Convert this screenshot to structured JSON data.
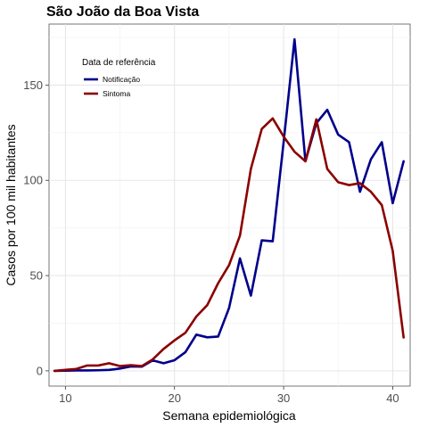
{
  "chart_data": {
    "type": "line",
    "title": "São João da Boa Vista",
    "xlabel": "Semana epidemiológica",
    "ylabel": "Casos por 100 mil habitantes",
    "xlim": [
      8.5,
      41.6
    ],
    "ylim": [
      -8,
      182
    ],
    "x_ticks": [
      10,
      20,
      30,
      40
    ],
    "y_ticks": [
      0,
      50,
      100,
      150
    ],
    "grid": true,
    "legend": {
      "title": "Data de referência",
      "placement": "top-left-inside"
    },
    "x": [
      9,
      10,
      11,
      12,
      13,
      14,
      15,
      16,
      17,
      18,
      19,
      20,
      21,
      22,
      23,
      24,
      25,
      26,
      27,
      28,
      29,
      30,
      31,
      32,
      33,
      34,
      35,
      36,
      37,
      38,
      39,
      40,
      41
    ],
    "series": [
      {
        "name": "Notificação",
        "color": "#00008b",
        "values": [
          0,
          0.1,
          0.2,
          0.2,
          0.3,
          0.5,
          1.2,
          2.3,
          2.2,
          5.5,
          4.0,
          5.6,
          9.8,
          19.0,
          17.6,
          18.0,
          33.0,
          59.0,
          39.5,
          68.5,
          68.0,
          120.0,
          174.0,
          110.0,
          130.0,
          137.0,
          124.0,
          120.0,
          94.0,
          111.0,
          120.0,
          88.0,
          110.0
        ]
      },
      {
        "name": "Sintoma",
        "color": "#8b0000",
        "values": [
          0,
          0.5,
          1.0,
          2.8,
          2.8,
          4.0,
          2.5,
          3.0,
          2.5,
          6.0,
          11.5,
          16.0,
          20.0,
          28.5,
          34.5,
          46.0,
          55.5,
          71.0,
          106.0,
          127.0,
          132.5,
          123.0,
          115.0,
          110.0,
          132.0,
          106.0,
          99.0,
          97.5,
          98.5,
          94.0,
          87.0,
          63.0,
          17.5
        ]
      }
    ]
  }
}
